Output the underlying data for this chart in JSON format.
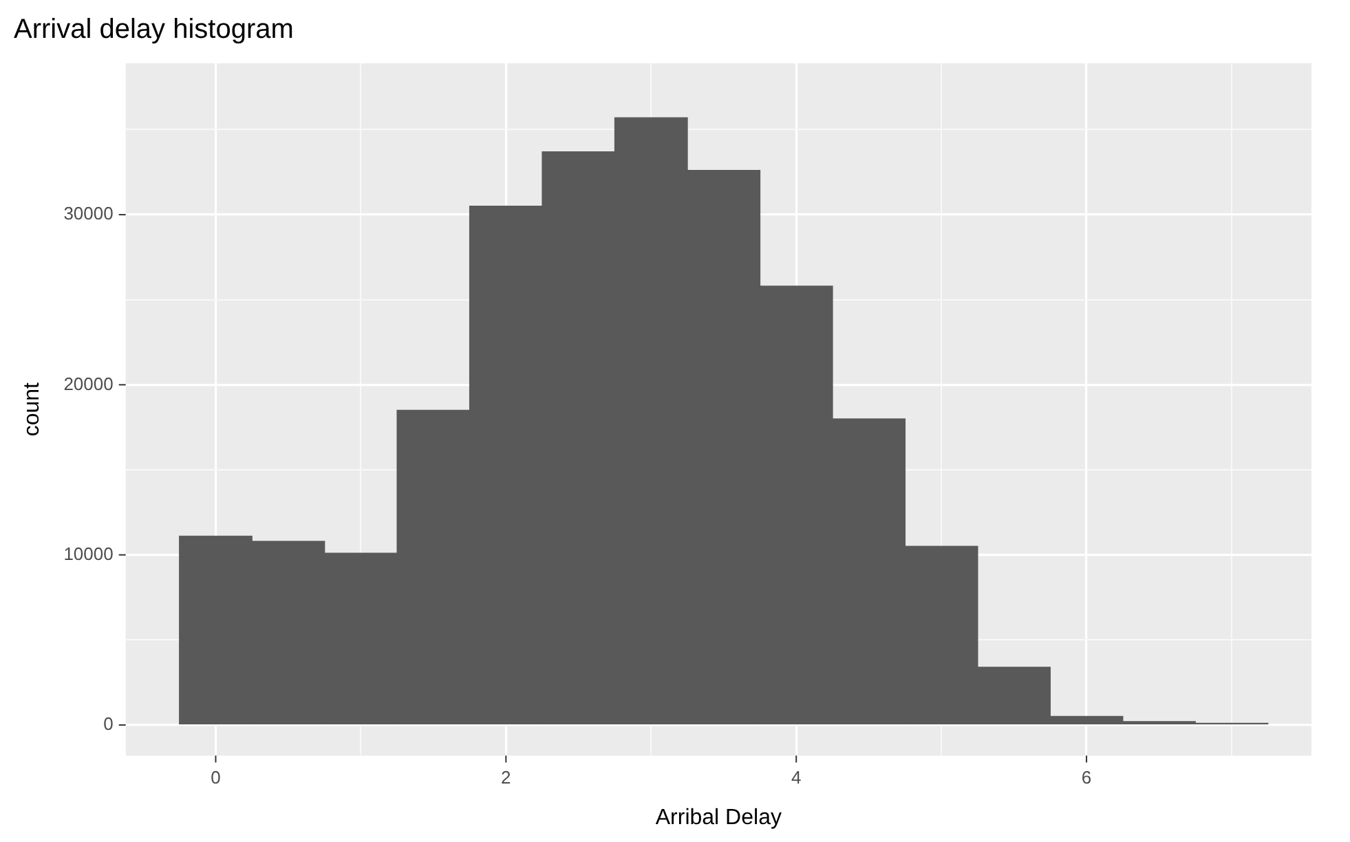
{
  "chart_data": {
    "type": "histogram",
    "title": "Arrival delay histogram",
    "xlabel": "Arribal Delay",
    "ylabel": "count",
    "bins": [
      -0.25,
      0.25,
      0.75,
      1.25,
      1.75,
      2.25,
      2.75,
      3.25,
      3.75,
      4.25,
      4.75,
      5.25,
      5.75,
      6.25,
      6.75,
      7.25
    ],
    "values": [
      11100,
      10800,
      10100,
      18500,
      30500,
      33700,
      35700,
      32600,
      25800,
      18000,
      10500,
      3400,
      500,
      200,
      100
    ],
    "color": "#595959",
    "xlim": [
      -0.62,
      7.55
    ],
    "xticks": [
      0,
      {
        "value": 1,
        "label": null
      },
      2,
      {
        "value": 3,
        "label": null
      },
      4,
      {
        "value": 5,
        "label": null
      },
      6,
      {
        "value": 7,
        "label": null
      }
    ],
    "ylim": [
      -1800,
      38900
    ],
    "yticks": [
      0,
      {
        "value": 5000,
        "label": null
      },
      10000,
      {
        "value": 15000,
        "label": null
      },
      20000,
      {
        "value": 25000,
        "label": null
      },
      30000,
      {
        "value": 35000,
        "label": null
      }
    ],
    "grid": true
  }
}
